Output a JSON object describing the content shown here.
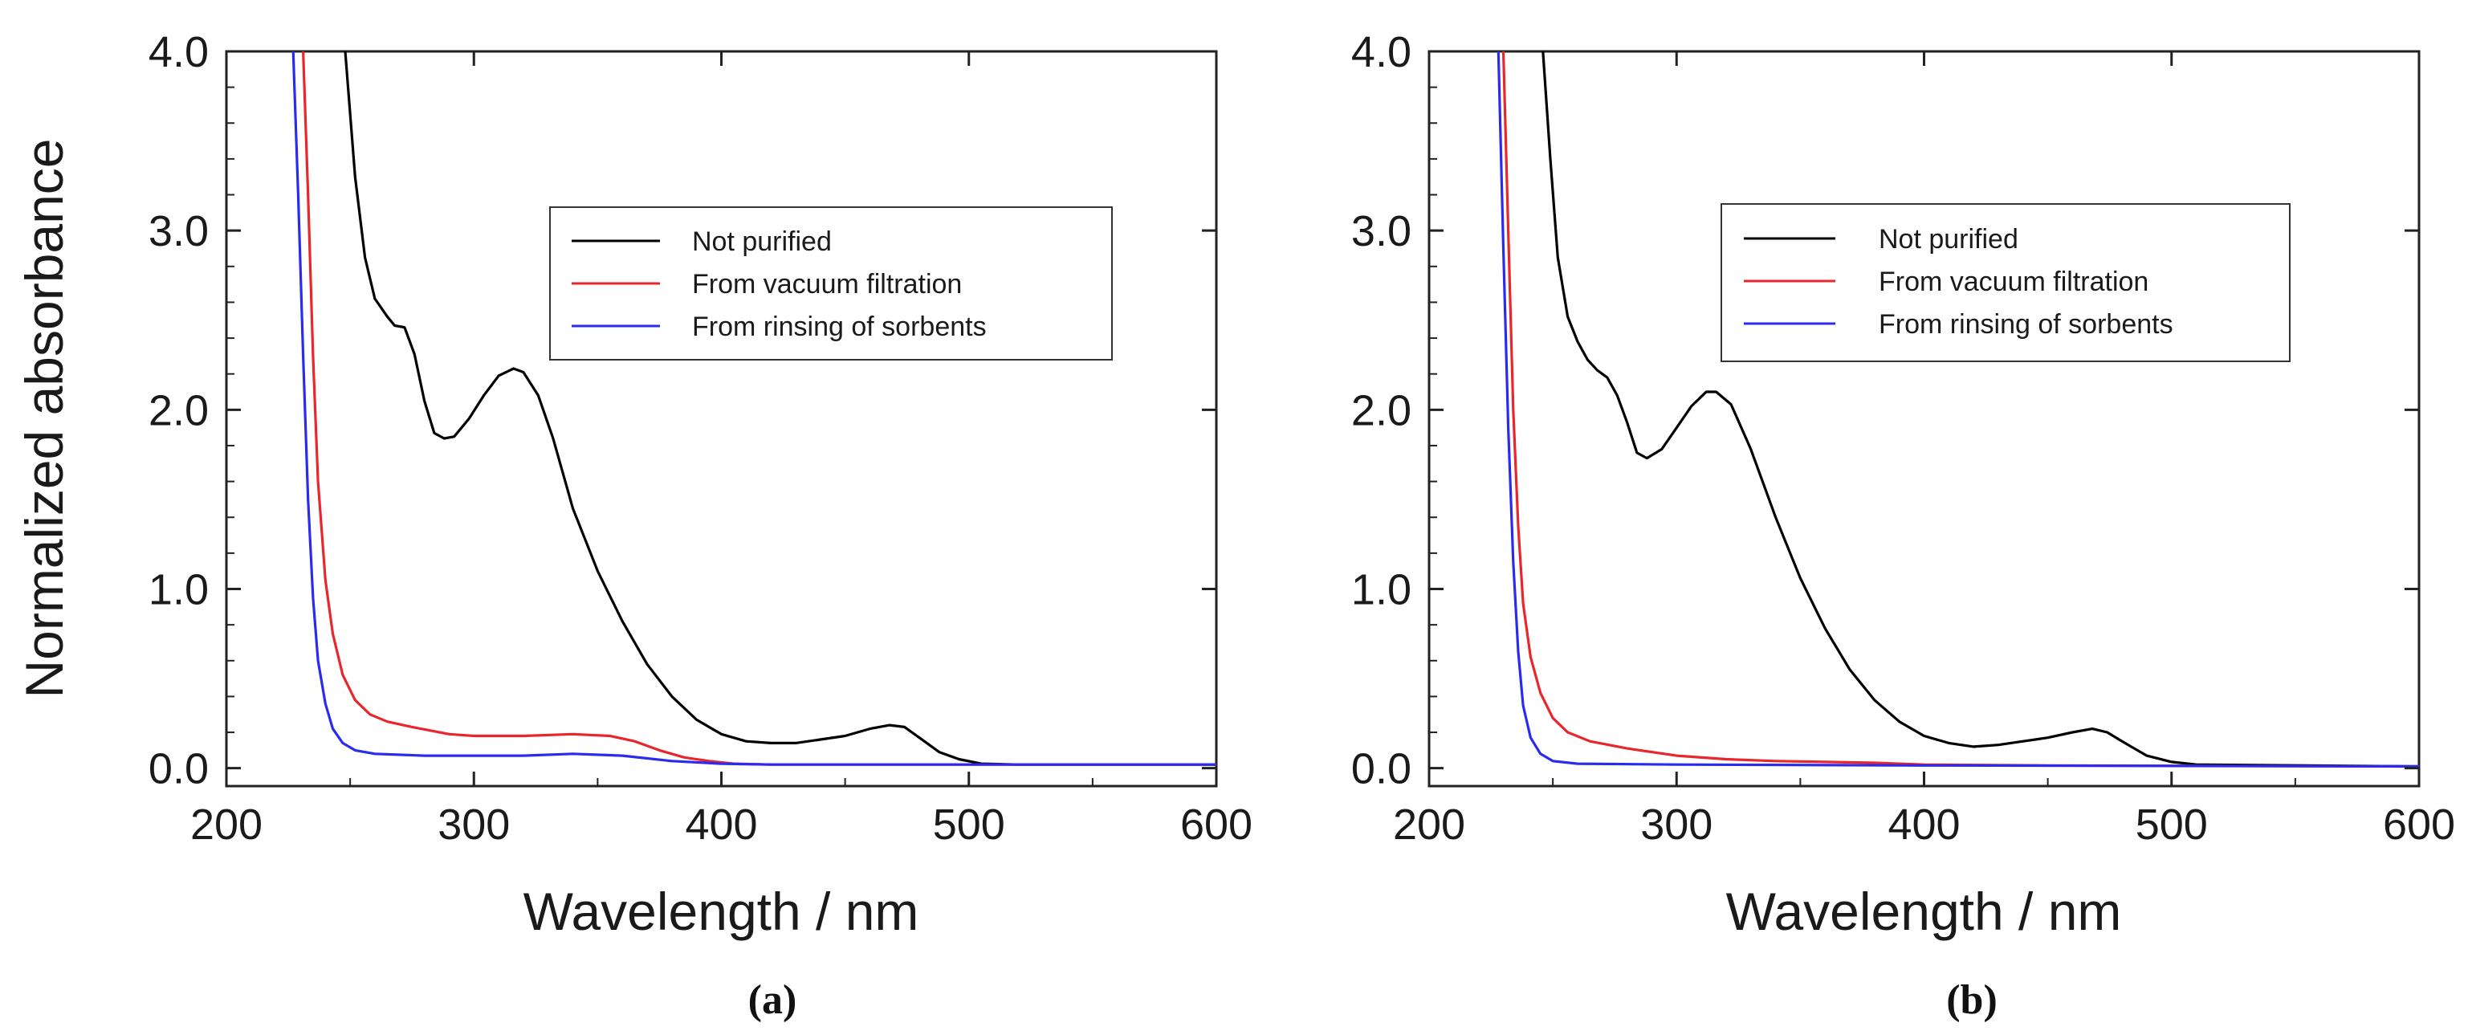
{
  "chart_data": [
    {
      "type": "line",
      "panel_label": "(a)",
      "xlabel": "Wavelength / nm",
      "ylabel": "Normalized absorbance",
      "xlim": [
        200,
        600
      ],
      "ylim": [
        -0.1,
        4.0
      ],
      "xticks": [
        200,
        300,
        400,
        500,
        600
      ],
      "xtick_labels": [
        "200",
        "300",
        "400",
        "500",
        "600"
      ],
      "yticks": [
        0,
        1,
        2,
        3,
        4
      ],
      "ytick_labels": [
        "0.0",
        "1.0",
        "2.0",
        "3.0",
        "4.0"
      ],
      "legend_position": "upper-right",
      "series": [
        {
          "name": "Not purified",
          "color": "#000000",
          "points": [
            [
              248,
              4.0
            ],
            [
              252,
              3.3
            ],
            [
              256,
              2.85
            ],
            [
              260,
              2.62
            ],
            [
              265,
              2.52
            ],
            [
              268,
              2.47
            ],
            [
              272,
              2.46
            ],
            [
              276,
              2.31
            ],
            [
              280,
              2.05
            ],
            [
              284,
              1.87
            ],
            [
              288,
              1.84
            ],
            [
              292,
              1.85
            ],
            [
              298,
              1.95
            ],
            [
              304,
              2.08
            ],
            [
              310,
              2.19
            ],
            [
              316,
              2.23
            ],
            [
              320,
              2.21
            ],
            [
              326,
              2.08
            ],
            [
              332,
              1.84
            ],
            [
              340,
              1.45
            ],
            [
              350,
              1.1
            ],
            [
              360,
              0.82
            ],
            [
              370,
              0.58
            ],
            [
              380,
              0.4
            ],
            [
              390,
              0.27
            ],
            [
              400,
              0.19
            ],
            [
              410,
              0.15
            ],
            [
              420,
              0.14
            ],
            [
              430,
              0.14
            ],
            [
              440,
              0.16
            ],
            [
              450,
              0.18
            ],
            [
              460,
              0.22
            ],
            [
              468,
              0.24
            ],
            [
              474,
              0.23
            ],
            [
              480,
              0.17
            ],
            [
              488,
              0.09
            ],
            [
              496,
              0.05
            ],
            [
              505,
              0.025
            ],
            [
              520,
              0.02
            ],
            [
              560,
              0.02
            ],
            [
              600,
              0.02
            ]
          ]
        },
        {
          "name": "From vacuum filtration",
          "color": "#e8262b",
          "points": [
            [
              231,
              4.0
            ],
            [
              233,
              3.2
            ],
            [
              235,
              2.3
            ],
            [
              237,
              1.6
            ],
            [
              240,
              1.05
            ],
            [
              243,
              0.75
            ],
            [
              247,
              0.52
            ],
            [
              252,
              0.38
            ],
            [
              258,
              0.3
            ],
            [
              265,
              0.26
            ],
            [
              275,
              0.23
            ],
            [
              290,
              0.19
            ],
            [
              300,
              0.18
            ],
            [
              320,
              0.18
            ],
            [
              340,
              0.19
            ],
            [
              355,
              0.18
            ],
            [
              365,
              0.15
            ],
            [
              375,
              0.1
            ],
            [
              385,
              0.06
            ],
            [
              395,
              0.04
            ],
            [
              405,
              0.025
            ],
            [
              420,
              0.02
            ],
            [
              500,
              0.02
            ],
            [
              600,
              0.02
            ]
          ]
        },
        {
          "name": "From rinsing of sorbents",
          "color": "#2b2bf0",
          "points": [
            [
              227,
              4.0
            ],
            [
              229,
              3.2
            ],
            [
              231,
              2.3
            ],
            [
              233,
              1.5
            ],
            [
              235,
              0.95
            ],
            [
              237,
              0.6
            ],
            [
              240,
              0.36
            ],
            [
              243,
              0.22
            ],
            [
              247,
              0.14
            ],
            [
              252,
              0.1
            ],
            [
              260,
              0.08
            ],
            [
              280,
              0.07
            ],
            [
              300,
              0.07
            ],
            [
              320,
              0.07
            ],
            [
              340,
              0.08
            ],
            [
              360,
              0.07
            ],
            [
              380,
              0.04
            ],
            [
              400,
              0.025
            ],
            [
              420,
              0.02
            ],
            [
              500,
              0.02
            ],
            [
              600,
              0.02
            ]
          ]
        }
      ]
    },
    {
      "type": "line",
      "panel_label": "(b)",
      "xlabel": "Wavelength / nm",
      "ylabel": "",
      "xlim": [
        200,
        600
      ],
      "ylim": [
        -0.1,
        4.0
      ],
      "xticks": [
        200,
        300,
        400,
        500,
        600
      ],
      "xtick_labels": [
        "200",
        "300",
        "400",
        "500",
        "600"
      ],
      "yticks": [
        0,
        1,
        2,
        3,
        4
      ],
      "ytick_labels": [
        "0.0",
        "1.0",
        "2.0",
        "3.0",
        "4.0"
      ],
      "legend_position": "upper-right",
      "series": [
        {
          "name": "Not purified",
          "color": "#000000",
          "points": [
            [
              246,
              4.0
            ],
            [
              249,
              3.4
            ],
            [
              252,
              2.85
            ],
            [
              256,
              2.52
            ],
            [
              260,
              2.38
            ],
            [
              264,
              2.28
            ],
            [
              268,
              2.22
            ],
            [
              272,
              2.18
            ],
            [
              276,
              2.08
            ],
            [
              280,
              1.93
            ],
            [
              284,
              1.76
            ],
            [
              288,
              1.73
            ],
            [
              294,
              1.78
            ],
            [
              300,
              1.9
            ],
            [
              306,
              2.02
            ],
            [
              312,
              2.1
            ],
            [
              316,
              2.1
            ],
            [
              322,
              2.03
            ],
            [
              330,
              1.78
            ],
            [
              340,
              1.4
            ],
            [
              350,
              1.06
            ],
            [
              360,
              0.78
            ],
            [
              370,
              0.55
            ],
            [
              380,
              0.38
            ],
            [
              390,
              0.26
            ],
            [
              400,
              0.18
            ],
            [
              410,
              0.14
            ],
            [
              420,
              0.12
            ],
            [
              430,
              0.13
            ],
            [
              440,
              0.15
            ],
            [
              450,
              0.17
            ],
            [
              460,
              0.2
            ],
            [
              468,
              0.22
            ],
            [
              474,
              0.2
            ],
            [
              480,
              0.15
            ],
            [
              490,
              0.07
            ],
            [
              500,
              0.035
            ],
            [
              510,
              0.02
            ],
            [
              600,
              0.01
            ]
          ]
        },
        {
          "name": "From vacuum filtration",
          "color": "#e8262b",
          "points": [
            [
              230,
              4.0
            ],
            [
              232,
              3.0
            ],
            [
              234,
              2.0
            ],
            [
              236,
              1.35
            ],
            [
              238,
              0.92
            ],
            [
              241,
              0.62
            ],
            [
              245,
              0.42
            ],
            [
              250,
              0.28
            ],
            [
              256,
              0.2
            ],
            [
              265,
              0.15
            ],
            [
              280,
              0.11
            ],
            [
              300,
              0.07
            ],
            [
              320,
              0.05
            ],
            [
              340,
              0.04
            ],
            [
              360,
              0.035
            ],
            [
              380,
              0.03
            ],
            [
              400,
              0.02
            ],
            [
              450,
              0.015
            ],
            [
              600,
              0.01
            ]
          ]
        },
        {
          "name": "From rinsing of sorbents",
          "color": "#2b2bf0",
          "points": [
            [
              228,
              4.0
            ],
            [
              230,
              2.9
            ],
            [
              232,
              1.9
            ],
            [
              234,
              1.15
            ],
            [
              236,
              0.65
            ],
            [
              238,
              0.35
            ],
            [
              241,
              0.17
            ],
            [
              245,
              0.08
            ],
            [
              250,
              0.04
            ],
            [
              260,
              0.025
            ],
            [
              300,
              0.02
            ],
            [
              400,
              0.015
            ],
            [
              600,
              0.01
            ]
          ]
        }
      ]
    }
  ]
}
